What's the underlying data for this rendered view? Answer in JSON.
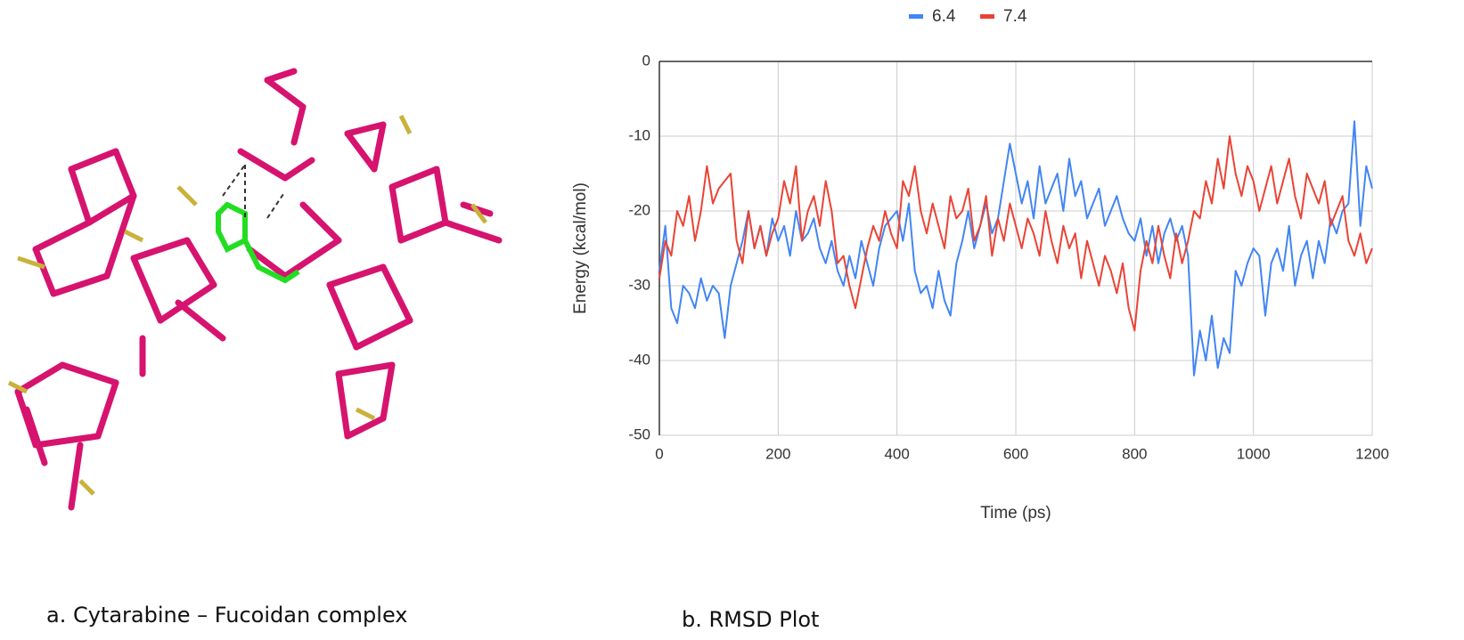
{
  "chart_data": {
    "type": "line",
    "x": [
      0,
      10,
      20,
      30,
      40,
      50,
      60,
      70,
      80,
      90,
      100,
      110,
      120,
      130,
      140,
      150,
      160,
      170,
      180,
      190,
      200,
      210,
      220,
      230,
      240,
      250,
      260,
      270,
      280,
      290,
      300,
      310,
      320,
      330,
      340,
      350,
      360,
      370,
      380,
      390,
      400,
      410,
      420,
      430,
      440,
      450,
      460,
      470,
      480,
      490,
      500,
      510,
      520,
      530,
      540,
      550,
      560,
      570,
      580,
      590,
      600,
      610,
      620,
      630,
      640,
      650,
      660,
      670,
      680,
      690,
      700,
      710,
      720,
      730,
      740,
      750,
      760,
      770,
      780,
      790,
      800,
      810,
      820,
      830,
      840,
      850,
      860,
      870,
      880,
      890,
      900,
      910,
      920,
      930,
      940,
      950,
      960,
      970,
      980,
      990,
      1000,
      1010,
      1020,
      1030,
      1040,
      1050,
      1060,
      1070,
      1080,
      1090,
      1100,
      1110,
      1120,
      1130,
      1140,
      1150,
      1160,
      1170,
      1180,
      1190,
      1200
    ],
    "series": [
      {
        "name": "6.4",
        "color": "#4285f4",
        "values": [
          -28,
          -22,
          -33,
          -35,
          -30,
          -31,
          -33,
          -29,
          -32,
          -30,
          -31,
          -37,
          -30,
          -27,
          -24,
          -20,
          -25,
          -22,
          -26,
          -21,
          -24,
          -22,
          -26,
          -20,
          -24,
          -23,
          -21,
          -25,
          -27,
          -24,
          -28,
          -30,
          -26,
          -29,
          -24,
          -27,
          -30,
          -25,
          -22,
          -21,
          -20,
          -24,
          -19,
          -28,
          -31,
          -30,
          -33,
          -28,
          -32,
          -34,
          -27,
          -24,
          -20,
          -25,
          -22,
          -19,
          -23,
          -21,
          -16,
          -11,
          -15,
          -19,
          -16,
          -21,
          -14,
          -19,
          -17,
          -15,
          -20,
          -13,
          -18,
          -16,
          -21,
          -19,
          -17,
          -22,
          -20,
          -18,
          -21,
          -23,
          -24,
          -21,
          -26,
          -22,
          -27,
          -23,
          -21,
          -24,
          -22,
          -26,
          -42,
          -36,
          -40,
          -34,
          -41,
          -37,
          -39,
          -28,
          -30,
          -27,
          -25,
          -26,
          -34,
          -27,
          -25,
          -28,
          -22,
          -30,
          -26,
          -24,
          -29,
          -24,
          -27,
          -21,
          -23,
          -20,
          -19,
          -8,
          -22,
          -14,
          -17
        ]
      },
      {
        "name": "7.4",
        "color": "#ea4335",
        "values": [
          -29,
          -24,
          -26,
          -20,
          -22,
          -18,
          -24,
          -20,
          -14,
          -19,
          -17,
          -16,
          -15,
          -24,
          -27,
          -20,
          -25,
          -22,
          -26,
          -23,
          -21,
          -16,
          -19,
          -14,
          -24,
          -20,
          -18,
          -22,
          -16,
          -20,
          -27,
          -26,
          -30,
          -33,
          -29,
          -25,
          -22,
          -24,
          -20,
          -23,
          -25,
          -16,
          -18,
          -14,
          -20,
          -23,
          -19,
          -22,
          -25,
          -18,
          -21,
          -20,
          -17,
          -24,
          -22,
          -18,
          -26,
          -21,
          -24,
          -19,
          -22,
          -25,
          -21,
          -23,
          -26,
          -20,
          -24,
          -27,
          -22,
          -25,
          -23,
          -29,
          -24,
          -27,
          -30,
          -26,
          -28,
          -31,
          -27,
          -33,
          -36,
          -28,
          -24,
          -27,
          -22,
          -26,
          -29,
          -23,
          -27,
          -24,
          -20,
          -21,
          -16,
          -19,
          -13,
          -17,
          -10,
          -15,
          -18,
          -14,
          -16,
          -20,
          -17,
          -14,
          -19,
          -16,
          -13,
          -18,
          -21,
          -15,
          -17,
          -19,
          -16,
          -22,
          -20,
          -18,
          -24,
          -26,
          -23,
          -27,
          -25
        ]
      }
    ],
    "xlabel": "Time (ps)",
    "ylabel": "Energy (kcal/mol)",
    "xlim": [
      0,
      1200
    ],
    "xticks": [
      0,
      200,
      400,
      600,
      800,
      1000,
      1200
    ],
    "ylim": [
      -50,
      0
    ],
    "yticks": [
      0,
      -10,
      -20,
      -30,
      -40,
      -50
    ],
    "grid": true,
    "legend": "top"
  },
  "captions": [
    "a. Cytarabine – Fucoidan complex",
    "b. RMSD Plot"
  ]
}
